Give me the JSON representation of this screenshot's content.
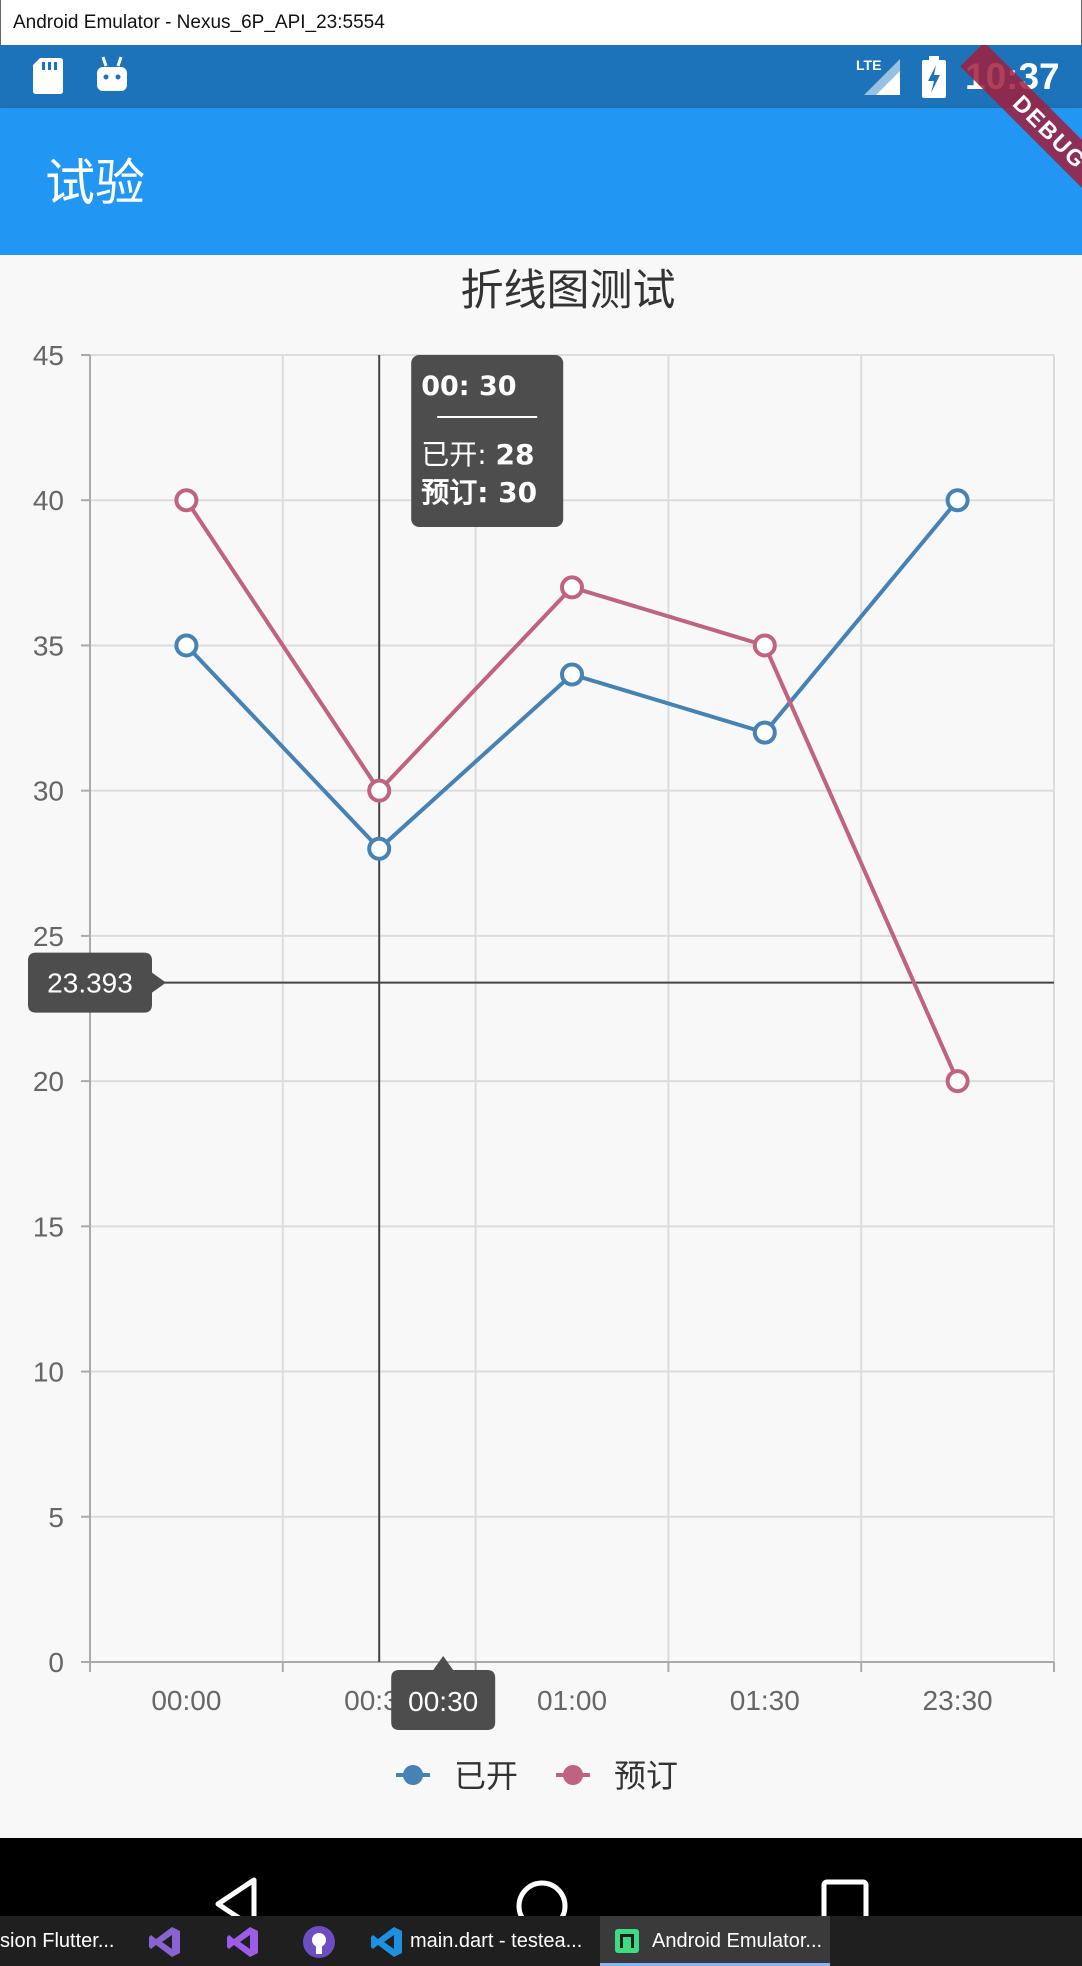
{
  "window": {
    "title": "Android Emulator - Nexus_6P_API_23:5554"
  },
  "status_bar": {
    "time": "10:37",
    "network": "LTE",
    "icons": [
      "sd-card-icon",
      "android-icon",
      "signal-icon",
      "battery-icon"
    ]
  },
  "debug_banner": {
    "label": "DEBUG"
  },
  "app_bar": {
    "title": "试验"
  },
  "colors": {
    "accent": "#2196f3",
    "status_bar": "#1c73ba",
    "series_opened": "#4682b4",
    "series_booked": "#c0637f"
  },
  "chart_data": {
    "type": "line",
    "title": "折线图测试",
    "categories": [
      "00:00",
      "00:30",
      "01:00",
      "01:30",
      "23:30"
    ],
    "series": [
      {
        "name": "已开",
        "values": [
          35,
          28,
          34,
          32,
          40
        ],
        "color": "#4682b4"
      },
      {
        "name": "预订",
        "values": [
          40,
          30,
          37,
          35,
          20
        ],
        "color": "#c0637f"
      }
    ],
    "ylim": [
      0,
      45
    ],
    "yticks": [
      "0",
      "5",
      "10",
      "15",
      "20",
      "25",
      "30",
      "35",
      "40",
      "45"
    ],
    "grid": true,
    "legend": "bottom-center",
    "crosshair": {
      "category": "00:30",
      "y_value": 23.393,
      "y_label": "23.393",
      "x_label": "00:30"
    },
    "tooltip": {
      "header": "00: 30",
      "rows": [
        {
          "name": "已开",
          "sep": ":",
          "value": "28"
        },
        {
          "name": "预订",
          "sep": ":",
          "value": "30"
        }
      ]
    }
  },
  "taskbar": {
    "items": [
      {
        "label": "sion Flutter..."
      },
      {
        "label": ""
      },
      {
        "label": ""
      },
      {
        "label": ""
      },
      {
        "label": "main.dart - testea..."
      },
      {
        "label": "Android Emulator..."
      }
    ]
  }
}
